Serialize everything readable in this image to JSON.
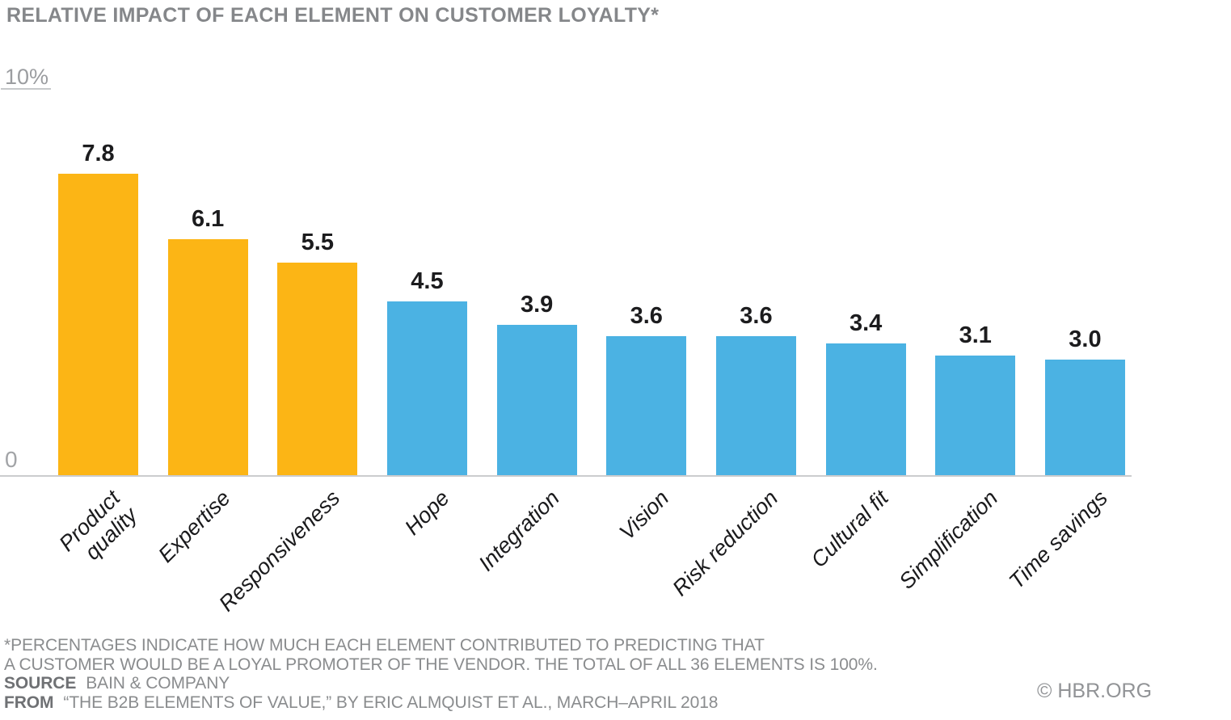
{
  "chart_data": {
    "type": "bar",
    "title": "RELATIVE IMPACT OF EACH ELEMENT ON CUSTOMER LOYALTY*",
    "categories": [
      "Product\nquality",
      "Expertise",
      "Responsiveness",
      "Hope",
      "Integration",
      "Vision",
      "Risk reduction",
      "Cultural fit",
      "Simplification",
      "Time savings"
    ],
    "values": [
      7.8,
      6.1,
      5.5,
      4.5,
      3.9,
      3.6,
      3.6,
      3.4,
      3.1,
      3.0
    ],
    "value_labels": [
      "7.8",
      "6.1",
      "5.5",
      "4.5",
      "3.9",
      "3.6",
      "3.6",
      "3.4",
      "3.1",
      "3.0"
    ],
    "bar_colors": [
      "orange",
      "orange",
      "orange",
      "blue",
      "blue",
      "blue",
      "blue",
      "blue",
      "blue",
      "blue"
    ],
    "colors": {
      "orange": "#FCB515",
      "blue": "#4BB2E3"
    },
    "xlabel": "",
    "ylabel": "",
    "y_axis": {
      "min": 0,
      "max": 10,
      "top_label": "10%",
      "bottom_label": "0"
    },
    "grid": false,
    "legend": false
  },
  "footer": {
    "note_line1": "*PERCENTAGES INDICATE HOW MUCH EACH ELEMENT CONTRIBUTED TO PREDICTING THAT",
    "note_line2": "A CUSTOMER WOULD BE A LOYAL PROMOTER OF THE VENDOR. THE TOTAL OF ALL 36 ELEMENTS IS 100%.",
    "source_label": "SOURCE",
    "source_value": "BAIN & COMPANY",
    "from_label": "FROM",
    "from_value": "“THE B2B ELEMENTS OF VALUE,” BY ERIC ALMQUIST ET AL., MARCH–APRIL 2018",
    "copyright": "© HBR.ORG"
  }
}
